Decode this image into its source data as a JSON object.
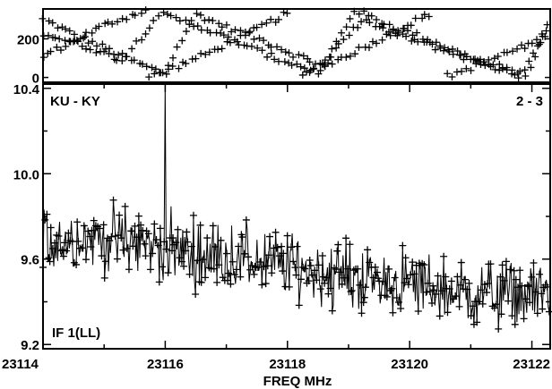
{
  "chart_data": [
    {
      "type": "scatter",
      "panel": "phase",
      "title": "",
      "xlabel": "",
      "ylabel": "",
      "xlim": [
        23114,
        23122.3
      ],
      "ylim": [
        -25,
        355
      ],
      "y_ticks": [
        0,
        200
      ],
      "y_tick_labels": [
        "0",
        "200"
      ],
      "marker": "plus",
      "grid": false,
      "phase_tracks": [
        {
          "x": [
            23114.0,
            23114.6,
            23115.1,
            23115.5,
            23116.0,
            23116.5,
            23117.0,
            23117.6,
            23118.1,
            23118.6,
            23119.1,
            23119.6,
            23120.2,
            23120.7,
            23121.3,
            23121.9,
            23122.3
          ],
          "y": [
            300,
            210,
            140,
            80,
            20,
            330,
            260,
            190,
            120,
            60,
            350,
            280,
            210,
            140,
            70,
            10,
            320
          ]
        },
        {
          "x": [
            23114.0,
            23114.5,
            23115.0,
            23115.6,
            23116.2,
            23116.8,
            23117.3,
            23117.8,
            23118.3,
            23118.9,
            23119.4,
            23119.9,
            23120.4,
            23121.0,
            23121.6,
            23122.3
          ],
          "y": [
            110,
            190,
            270,
            340,
            60,
            140,
            220,
            300,
            20,
            100,
            180,
            260,
            340,
            50,
            130,
            210
          ]
        },
        {
          "x": [
            23114.0,
            23114.7,
            23115.3,
            23115.9,
            23116.6,
            23117.2,
            23117.8,
            23118.5,
            23119.2,
            23119.8,
            23120.5,
            23121.1,
            23121.8,
            23122.3
          ],
          "y": [
            230,
            160,
            90,
            330,
            260,
            180,
            100,
            30,
            300,
            220,
            150,
            80,
            10,
            290
          ]
        }
      ]
    },
    {
      "type": "line",
      "panel": "amplitude",
      "title": "",
      "xlabel": "FREQ MHz",
      "ylabel": "",
      "xlim": [
        23114,
        23122.3
      ],
      "ylim": [
        9.18,
        10.42
      ],
      "x_ticks": [
        23114,
        23116,
        23118,
        23120,
        23122
      ],
      "x_tick_labels": [
        "23114",
        "23116",
        "23118",
        "23120",
        "23122"
      ],
      "y_ticks": [
        9.2,
        9.6,
        10.0,
        10.4
      ],
      "y_tick_labels": [
        "9.2",
        "9.6",
        "10.0",
        "10.4"
      ],
      "annotations": {
        "top_left": "KU - KY",
        "top_right": "2 - 3",
        "bottom_left": "IF 1(LL)"
      },
      "marker": "plus",
      "grid": false,
      "spike": {
        "x": 23116.0,
        "y": 10.42
      },
      "trend": {
        "x": [
          23114.0,
          23114.8,
          23115.5,
          23116.0,
          23116.6,
          23117.3,
          23118.0,
          23118.7,
          23119.4,
          23120.1,
          23120.8,
          23121.4,
          23122.0,
          23122.3
        ],
        "y": [
          9.68,
          9.7,
          9.68,
          9.65,
          9.62,
          9.6,
          9.57,
          9.53,
          9.5,
          9.48,
          9.44,
          9.44,
          9.43,
          9.45
        ]
      },
      "noise_amplitude": 0.14,
      "n_points": 520
    }
  ]
}
